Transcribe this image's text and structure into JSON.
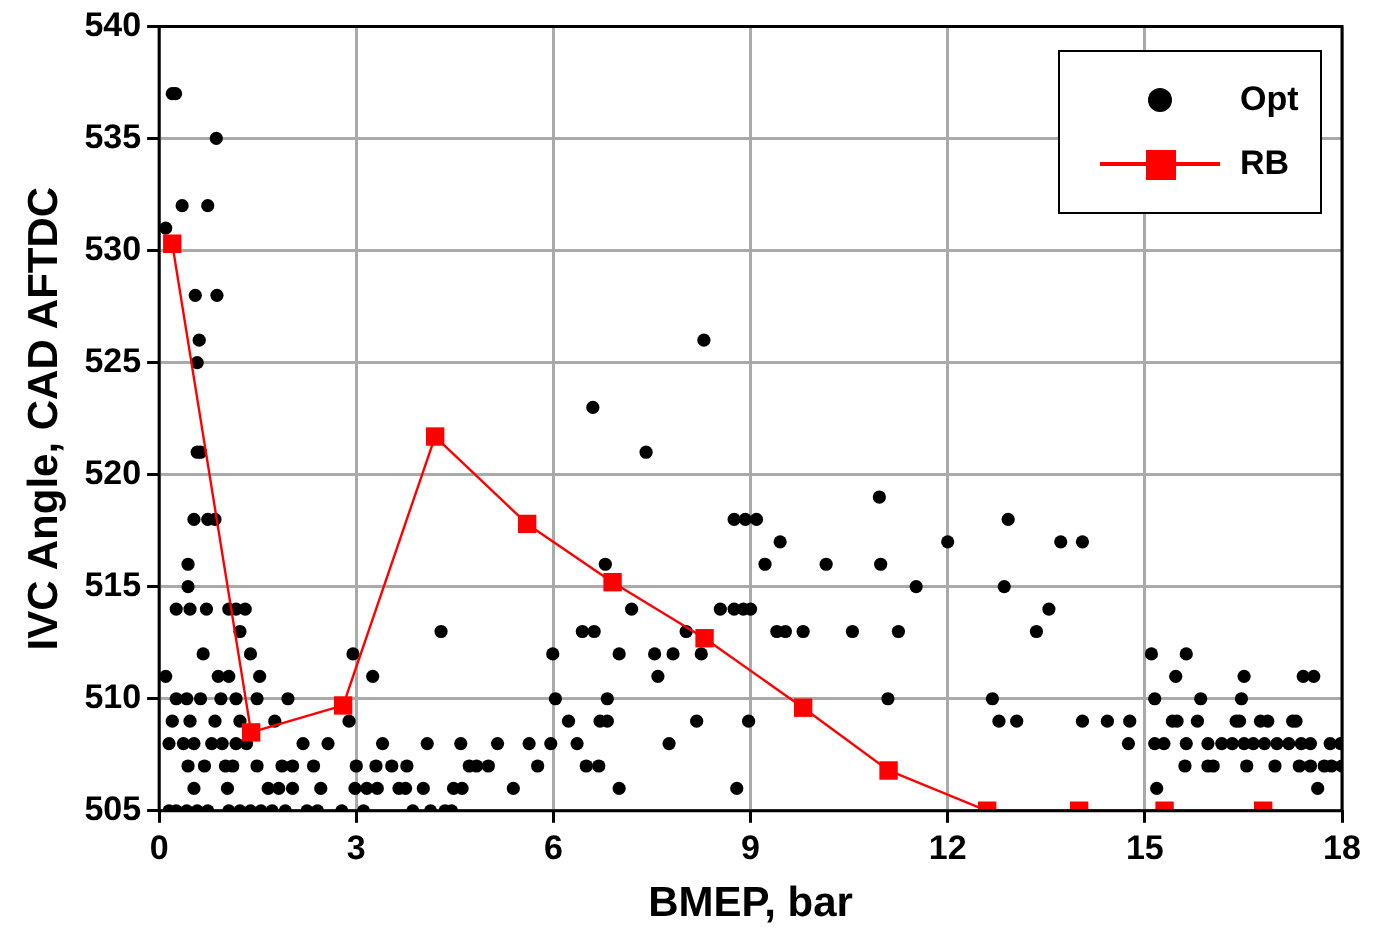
{
  "chart_data": {
    "type": "scatter",
    "xlabel": "BMEP, bar",
    "ylabel": "IVC Angle, CAD AFTDC",
    "xlim": [
      0,
      18
    ],
    "ylim": [
      505,
      540
    ],
    "xticks": [
      0,
      3,
      6,
      9,
      12,
      15,
      18
    ],
    "yticks": [
      505,
      510,
      515,
      520,
      525,
      530,
      535,
      540
    ],
    "grid": true,
    "legend": "top right",
    "series": [
      {
        "name": "Opt",
        "type": "scatter",
        "marker": "circle",
        "color": "#000000",
        "x": [
          0.2,
          0.25,
          0.87,
          0.35,
          0.74,
          0.1,
          0.55,
          0.88,
          0.61,
          0.58,
          0.58,
          0.63,
          0.53,
          0.74,
          0.85,
          0.44,
          0.44,
          0.26,
          0.47,
          0.72,
          1.06,
          1.17,
          1.31,
          1.23,
          4.29,
          0.67,
          1.39,
          2.95,
          0.1,
          0.9,
          1.06,
          1.53,
          3.25,
          0.26,
          0.42,
          0.63,
          0.94,
          1.17,
          1.49,
          1.96,
          0.2,
          0.47,
          0.85,
          1.23,
          1.76,
          2.89,
          0.15,
          0.37,
          0.53,
          0.8,
          0.96,
          1.17,
          1.33,
          2.19,
          2.57,
          3.4,
          4.08,
          4.59,
          5.15,
          5.63,
          0.44,
          0.69,
          1.01,
          1.12,
          1.49,
          1.87,
          2.03,
          2.35,
          3.0,
          3.3,
          3.54,
          3.77,
          4.72,
          4.83,
          5.01,
          5.76,
          0.53,
          1.04,
          1.66,
          1.82,
          2.03,
          2.46,
          2.98,
          3.16,
          3.32,
          3.65,
          3.75,
          4.02,
          4.48,
          4.61,
          5.39,
          0.15,
          0.26,
          0.42,
          0.58,
          0.74,
          1.06,
          1.23,
          1.39,
          1.55,
          1.72,
          1.92,
          2.25,
          2.41,
          2.78,
          3.11,
          3.86,
          4.13,
          4.35,
          4.45,
          8.29,
          6.6,
          7.41,
          10.96,
          8.75,
          8.92,
          9.09,
          9.45,
          12.0,
          6.79,
          9.22,
          10.15,
          10.98,
          11.52,
          7.19,
          8.54,
          8.75,
          8.89,
          9.0,
          6.44,
          6.62,
          8.02,
          9.4,
          9.53,
          9.8,
          10.55,
          11.25,
          5.99,
          7.0,
          7.54,
          7.82,
          8.25,
          7.59,
          6.03,
          6.82,
          11.09,
          6.23,
          6.71,
          6.82,
          8.18,
          8.97,
          5.96,
          6.36,
          7.76,
          6.5,
          6.69,
          7.0,
          8.79,
          12.92,
          13.72,
          14.05,
          12.86,
          13.54,
          13.35,
          15.1,
          15.63,
          15.47,
          16.51,
          17.41,
          17.57,
          12.68,
          15.15,
          15.85,
          16.47,
          12.78,
          13.05,
          14.05,
          14.43,
          14.77,
          15.42,
          15.49,
          15.8,
          16.39,
          16.44,
          16.76,
          16.87,
          17.25,
          17.3,
          14.75,
          15.15,
          15.29,
          15.63,
          15.96,
          16.17,
          16.33,
          16.51,
          16.65,
          16.82,
          17.01,
          17.19,
          17.38,
          17.52,
          17.82,
          17.98,
          15.61,
          15.96,
          16.04,
          16.55,
          16.98,
          17.35,
          17.52,
          17.73,
          17.84,
          18.0,
          15.18,
          17.63
        ],
        "values": [
          537,
          537,
          535,
          532,
          532,
          531,
          528,
          528,
          526,
          525,
          521,
          521,
          518,
          518,
          518,
          516,
          515,
          514,
          514,
          514,
          514,
          514,
          514,
          513,
          513,
          512,
          512,
          512,
          511,
          511,
          511,
          511,
          511,
          510,
          510,
          510,
          510,
          510,
          510,
          510,
          509,
          509,
          509,
          509,
          509,
          509,
          508,
          508,
          508,
          508,
          508,
          508,
          508,
          508,
          508,
          508,
          508,
          508,
          508,
          508,
          507,
          507,
          507,
          507,
          507,
          507,
          507,
          507,
          507,
          507,
          507,
          507,
          507,
          507,
          507,
          507,
          506,
          506,
          506,
          506,
          506,
          506,
          506,
          506,
          506,
          506,
          506,
          506,
          506,
          506,
          506,
          505,
          505,
          505,
          505,
          505,
          505,
          505,
          505,
          505,
          505,
          505,
          505,
          505,
          505,
          505,
          505,
          505,
          505,
          505,
          526,
          523,
          521,
          519,
          518,
          518,
          518,
          517,
          517,
          516,
          516,
          516,
          516,
          515,
          514,
          514,
          514,
          514,
          514,
          513,
          513,
          513,
          513,
          513,
          513,
          513,
          513,
          512,
          512,
          512,
          512,
          512,
          511,
          510,
          510,
          510,
          509,
          509,
          509,
          509,
          509,
          508,
          508,
          508,
          507,
          507,
          506,
          506,
          518,
          517,
          517,
          515,
          514,
          513,
          512,
          512,
          511,
          511,
          511,
          511,
          510,
          510,
          510,
          510,
          509,
          509,
          509,
          509,
          509,
          509,
          509,
          509,
          509,
          509,
          509,
          509,
          509,
          509,
          508,
          508,
          508,
          508,
          508,
          508,
          508,
          508,
          508,
          508,
          508,
          508,
          508,
          508,
          508,
          508,
          507,
          507,
          507,
          507,
          507,
          507,
          507,
          507,
          507,
          507,
          506,
          506
        ]
      },
      {
        "name": "RB",
        "type": "line",
        "marker": "square",
        "line_style": "solid",
        "color": "#ff0000",
        "x": [
          0.2,
          1.4,
          2.8,
          4.2,
          5.6,
          6.9,
          8.3,
          9.8,
          11.1,
          12.6,
          14.0,
          15.3,
          16.8
        ],
        "values": [
          530.3,
          508.5,
          509.7,
          521.7,
          517.8,
          515.2,
          512.7,
          509.6,
          506.8,
          505,
          505,
          505,
          505
        ]
      }
    ]
  }
}
